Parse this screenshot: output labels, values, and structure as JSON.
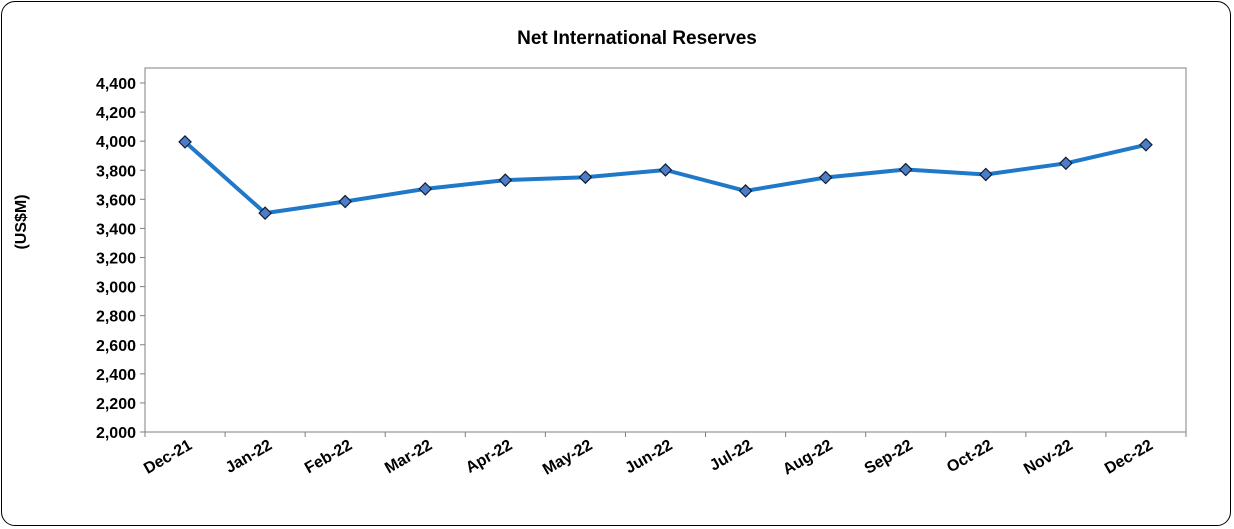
{
  "chart_data": {
    "type": "line",
    "title": "Net International Reserves",
    "xlabel": "",
    "ylabel": "(US$M)",
    "categories": [
      "Dec-21",
      "Jan-22",
      "Feb-22",
      "Mar-22",
      "Apr-22",
      "May-22",
      "Jun-22",
      "Jul-22",
      "Aug-22",
      "Sep-22",
      "Oct-22",
      "Nov-22",
      "Dec-22"
    ],
    "series": [
      {
        "values": [
          3995,
          3505,
          3585,
          3672,
          3732,
          3752,
          3802,
          3658,
          3750,
          3805,
          3771,
          3848,
          3975
        ]
      }
    ],
    "ylim": [
      2000,
      4400
    ],
    "yticks": [
      "2,000",
      "2,200",
      "2,400",
      "2,600",
      "2,800",
      "3,000",
      "3,200",
      "3,400",
      "3,600",
      "3,800",
      "4,000",
      "4,200",
      "4,400"
    ],
    "grid": false,
    "legend": "none",
    "colors": {
      "line": "#1F78C8",
      "marker_fill": "#4F7DC4",
      "marker_stroke": "#0B1F3A"
    }
  }
}
